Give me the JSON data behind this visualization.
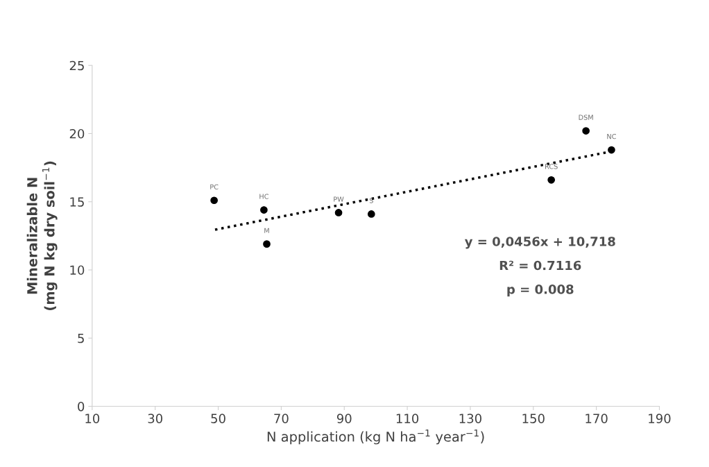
{
  "chart_data": {
    "type": "scatter",
    "xlabel": "N application (kg N ha$^{−1}$ year$^{−1}$)",
    "ylabel": "Mineralizable N\n(mg N kg dry soil$^{−1}$)",
    "xlim": [
      10,
      190
    ],
    "xticks": [
      10,
      30,
      50,
      70,
      90,
      110,
      130,
      150,
      170,
      190
    ],
    "ylim": [
      0,
      25
    ],
    "yticks": [
      0,
      5,
      10,
      15,
      20,
      25
    ],
    "grid": false,
    "marker": "circle",
    "series": [
      {
        "color": "#000000",
        "x": [
          48.7,
          64.5,
          65.4,
          88.2,
          98.6,
          155.7,
          166.7,
          174.8
        ],
        "values": [
          15.1,
          14.4,
          11.9,
          14.2,
          14.1,
          16.6,
          20.2,
          18.8
        ]
      },
      {
        "type": "line",
        "color": "#000000",
        "line_style": "dotted",
        "marker": "none",
        "x": [
          49,
          175
        ],
        "values": [
          12.95,
          18.7
        ]
      }
    ],
    "annotations": [
      {
        "text": "PC",
        "x": 48.7,
        "y": 15.1
      },
      {
        "text": "HC",
        "x": 64.5,
        "y": 14.4
      },
      {
        "text": "M",
        "x": 65.4,
        "y": 11.9
      },
      {
        "text": "PW",
        "x": 88.2,
        "y": 14.2
      },
      {
        "text": "S",
        "x": 98.6,
        "y": 14.1
      },
      {
        "text": "RCS",
        "x": 155.7,
        "y": 16.6
      },
      {
        "text": "DSM",
        "x": 166.7,
        "y": 20.2
      },
      {
        "text": "NC",
        "x": 174.8,
        "y": 18.8
      },
      "y = 0,0456x + 10,718",
      "R² = 0.7116",
      "p = 0.008"
    ]
  }
}
